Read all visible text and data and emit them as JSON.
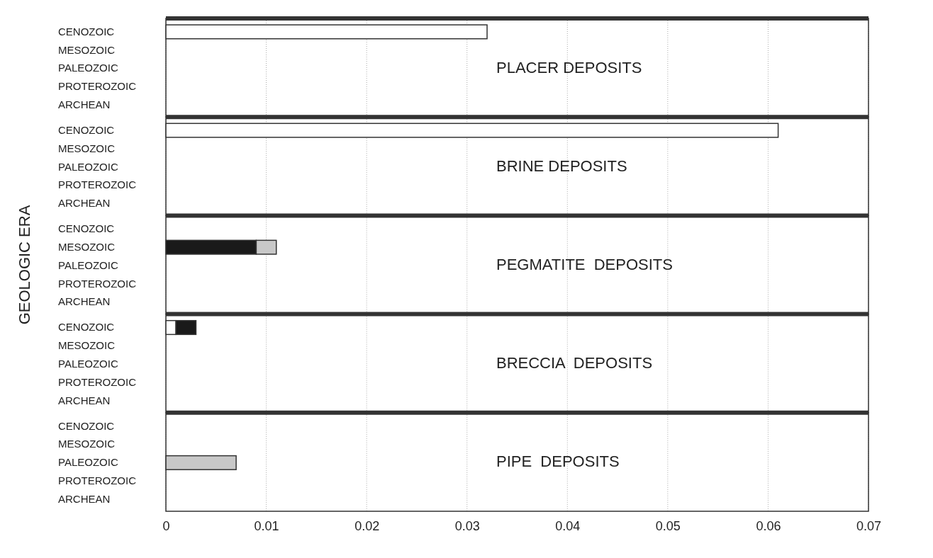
{
  "chart_data": [
    {
      "type": "bar",
      "orientation": "horizontal",
      "stacked": true,
      "categories": [
        "CENOZOIC",
        "MESOZOIC",
        "PALEOZOIC",
        "PROTEROZOIC",
        "ARCHEAN"
      ],
      "series": [
        {
          "color": "#ffffff",
          "values": [
            0.032,
            null,
            null,
            null,
            null
          ]
        },
        {
          "color": "#1a1a1a",
          "values": [
            null,
            null,
            null,
            null,
            null
          ]
        },
        {
          "color": "#c8c8c8",
          "values": [
            null,
            null,
            null,
            null,
            null
          ]
        }
      ],
      "xlim": [
        0,
        0.07
      ],
      "xticks": [
        0,
        0.01,
        0.02,
        0.03,
        0.04,
        0.05,
        0.06,
        0.07
      ],
      "grid": "x",
      "tick_labels": "y",
      "annotations": [
        "PLACER DEPOSITS"
      ]
    },
    {
      "type": "bar",
      "orientation": "horizontal",
      "stacked": true,
      "categories": [
        "CENOZOIC",
        "MESOZOIC",
        "PALEOZOIC",
        "PROTEROZOIC",
        "ARCHEAN"
      ],
      "series": [
        {
          "color": "#ffffff",
          "values": [
            0.061,
            null,
            null,
            null,
            null
          ]
        },
        {
          "color": "#1a1a1a",
          "values": [
            null,
            null,
            null,
            null,
            null
          ]
        },
        {
          "color": "#c8c8c8",
          "values": [
            null,
            null,
            null,
            null,
            null
          ]
        }
      ],
      "xlim": [
        0,
        0.07
      ],
      "xticks": [
        0,
        0.01,
        0.02,
        0.03,
        0.04,
        0.05,
        0.06,
        0.07
      ],
      "grid": "x",
      "tick_labels": "y",
      "annotations": [
        "BRINE DEPOSITS"
      ]
    },
    {
      "type": "bar",
      "orientation": "horizontal",
      "stacked": true,
      "categories": [
        "CENOZOIC",
        "MESOZOIC",
        "PALEOZOIC",
        "PROTEROZOIC",
        "ARCHEAN"
      ],
      "series": [
        {
          "color": "#ffffff",
          "values": [
            null,
            null,
            null,
            null,
            null
          ]
        },
        {
          "color": "#1a1a1a",
          "values": [
            null,
            0.009,
            null,
            null,
            null
          ]
        },
        {
          "color": "#c8c8c8",
          "values": [
            null,
            0.002,
            null,
            null,
            null
          ]
        }
      ],
      "xlim": [
        0,
        0.07
      ],
      "xticks": [
        0,
        0.01,
        0.02,
        0.03,
        0.04,
        0.05,
        0.06,
        0.07
      ],
      "grid": "x",
      "tick_labels": "y",
      "ylabel": "GEOLOGIC ERA",
      "annotations": [
        "PEGMATITE  DEPOSITS"
      ]
    },
    {
      "type": "bar",
      "orientation": "horizontal",
      "stacked": true,
      "categories": [
        "CENOZOIC",
        "MESOZOIC",
        "PALEOZOIC",
        "PROTEROZOIC",
        "ARCHEAN"
      ],
      "series": [
        {
          "color": "#ffffff",
          "values": [
            0.001,
            null,
            null,
            null,
            null
          ]
        },
        {
          "color": "#1a1a1a",
          "values": [
            0.002,
            null,
            null,
            null,
            null
          ]
        },
        {
          "color": "#c8c8c8",
          "values": [
            null,
            null,
            null,
            null,
            null
          ]
        }
      ],
      "xlim": [
        0,
        0.07
      ],
      "xticks": [
        0,
        0.01,
        0.02,
        0.03,
        0.04,
        0.05,
        0.06,
        0.07
      ],
      "grid": "x",
      "tick_labels": "y",
      "annotations": [
        "BRECCIA  DEPOSITS"
      ]
    },
    {
      "type": "bar",
      "orientation": "horizontal",
      "stacked": true,
      "categories": [
        "CENOZOIC",
        "MESOZOIC",
        "PALEOZOIC",
        "PROTEROZOIC",
        "ARCHEAN"
      ],
      "series": [
        {
          "color": "#ffffff",
          "values": [
            null,
            null,
            null,
            null,
            null
          ]
        },
        {
          "color": "#1a1a1a",
          "values": [
            null,
            null,
            null,
            null,
            null
          ]
        },
        {
          "color": "#c8c8c8",
          "values": [
            null,
            null,
            0.007,
            null,
            null
          ]
        }
      ],
      "xlim": [
        0,
        0.07
      ],
      "xticks": [
        0,
        0.01,
        0.02,
        0.03,
        0.04,
        0.05,
        0.06,
        0.07
      ],
      "grid": "x",
      "annotations": [
        "PIPE  DEPOSITS"
      ]
    }
  ]
}
